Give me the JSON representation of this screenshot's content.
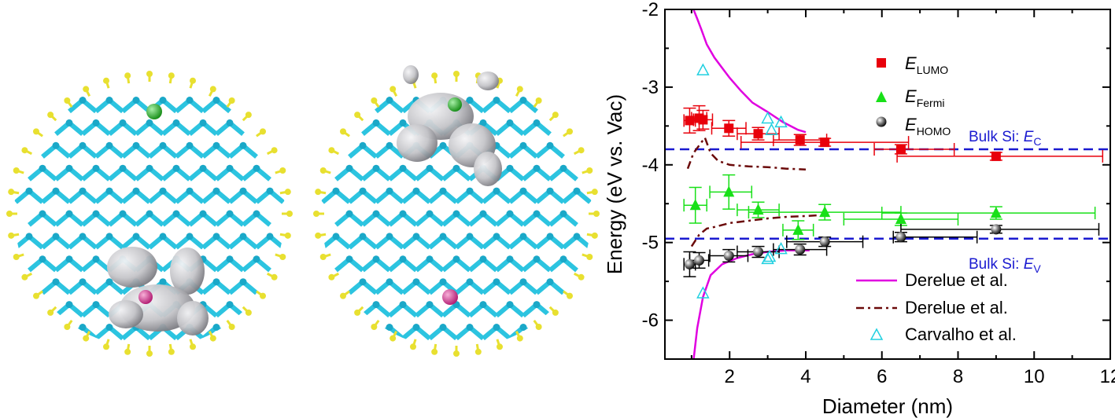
{
  "chart_data": {
    "type": "scatter",
    "xlabel": "Diameter (nm)",
    "ylabel": "Energy (eV vs. Vac)",
    "xlim": [
      0.3,
      12
    ],
    "ylim": [
      -6.5,
      -2
    ],
    "xticks": [
      2,
      4,
      6,
      8,
      10,
      12
    ],
    "yticks": [
      -2,
      -3,
      -4,
      -5,
      -6
    ],
    "xtick_labels": [
      "2",
      "4",
      "6",
      "8",
      "10",
      "12"
    ],
    "ytick_labels": [
      "-2",
      "-3",
      "-4",
      "-5",
      "-6"
    ],
    "grid": false,
    "legend_position": "top-right",
    "colors": {
      "lumo": "#e8000b",
      "fermi": "#18e018",
      "homo": "#000000",
      "derelue_solid": "#e000e0",
      "derelue_dash": "#6b0a0a",
      "carvalho": "#20d0e0",
      "bulk": "#1a1ad0"
    },
    "series": [
      {
        "name": "E",
        "sub": "LUMO",
        "marker": "square",
        "points": [
          {
            "x": 0.95,
            "y": -3.43,
            "xerr": [
              0.15,
              0.15
            ],
            "yerr": 0.16
          },
          {
            "x": 1.2,
            "y": -3.4,
            "xerr": [
              0.2,
              0.2
            ],
            "yerr": 0.16
          },
          {
            "x": 1.3,
            "y": -3.42,
            "xerr": [
              0.25,
              0.25
            ],
            "yerr": 0.12
          },
          {
            "x": 1.98,
            "y": -3.53,
            "xerr": [
              0.45,
              0.45
            ],
            "yerr": 0.1
          },
          {
            "x": 2.75,
            "y": -3.6,
            "xerr": [
              0.55,
              0.55
            ],
            "yerr": 0.08
          },
          {
            "x": 3.85,
            "y": -3.68,
            "xerr": [
              0.7,
              0.7
            ],
            "yerr": 0.07
          },
          {
            "x": 4.5,
            "y": -3.71,
            "xerr": [
              2.2,
              2.2
            ],
            "yerr": 0.05
          },
          {
            "x": 6.5,
            "y": -3.8,
            "xerr": [
              0.7,
              1.4
            ],
            "yerr": 0.06
          },
          {
            "x": 9.0,
            "y": -3.89,
            "xerr": [
              2.6,
              2.8
            ],
            "yerr": 0.05
          }
        ]
      },
      {
        "name": "E",
        "sub": "Fermi",
        "marker": "triangle",
        "points": [
          {
            "x": 1.1,
            "y": -4.52,
            "xerr": [
              0.3,
              0.3
            ],
            "yerr": 0.23
          },
          {
            "x": 1.98,
            "y": -4.35,
            "xerr": [
              0.5,
              0.6
            ],
            "yerr": 0.22
          },
          {
            "x": 2.75,
            "y": -4.58,
            "xerr": [
              0.55,
              0.55
            ],
            "yerr": 0.1
          },
          {
            "x": 3.8,
            "y": -4.84,
            "xerr": [
              0.4,
              0.4
            ],
            "yerr": 0.12
          },
          {
            "x": 4.5,
            "y": -4.61,
            "xerr": [
              2.0,
              2.0
            ],
            "yerr": 0.1
          },
          {
            "x": 6.5,
            "y": -4.7,
            "xerr": [
              1.5,
              1.5
            ],
            "yerr": 0.08
          },
          {
            "x": 9.0,
            "y": -4.62,
            "xerr": [
              3.0,
              2.6
            ],
            "yerr": 0.08
          }
        ]
      },
      {
        "name": "E",
        "sub": "HOMO",
        "marker": "sphere",
        "points": [
          {
            "x": 0.95,
            "y": -5.28,
            "xerr": [
              0.15,
              0.15
            ],
            "yerr": 0.16
          },
          {
            "x": 1.2,
            "y": -5.23,
            "xerr": [
              0.25,
              0.25
            ],
            "yerr": 0.1
          },
          {
            "x": 1.98,
            "y": -5.17,
            "xerr": [
              0.5,
              0.5
            ],
            "yerr": 0.08
          },
          {
            "x": 2.75,
            "y": -5.12,
            "xerr": [
              0.55,
              0.55
            ],
            "yerr": 0.07
          },
          {
            "x": 3.85,
            "y": -5.09,
            "xerr": [
              0.7,
              0.7
            ],
            "yerr": 0.07
          },
          {
            "x": 4.5,
            "y": -4.99,
            "xerr": [
              1.0,
              1.0
            ],
            "yerr": 0.06
          },
          {
            "x": 6.5,
            "y": -4.93,
            "xerr": [
              0.2,
              2.0
            ],
            "yerr": 0.06
          },
          {
            "x": 9.0,
            "y": -4.83,
            "xerr": [
              2.5,
              2.7
            ],
            "yerr": 0.05
          }
        ]
      }
    ],
    "derelue_solid_upper": [
      [
        1.05,
        -2.0
      ],
      [
        1.15,
        -2.12
      ],
      [
        1.25,
        -2.25
      ],
      [
        1.4,
        -2.45
      ],
      [
        1.6,
        -2.62
      ],
      [
        1.8,
        -2.75
      ],
      [
        2.0,
        -2.88
      ],
      [
        2.3,
        -3.05
      ],
      [
        2.6,
        -3.2
      ],
      [
        3.0,
        -3.32
      ],
      [
        3.4,
        -3.45
      ],
      [
        3.8,
        -3.55
      ],
      [
        4.0,
        -3.58
      ]
    ],
    "derelue_solid_lower": [
      [
        1.05,
        -6.52
      ],
      [
        1.15,
        -6.1
      ],
      [
        1.3,
        -5.7
      ],
      [
        1.5,
        -5.42
      ],
      [
        1.8,
        -5.28
      ],
      [
        2.2,
        -5.2
      ],
      [
        2.6,
        -5.15
      ],
      [
        3.0,
        -5.12
      ],
      [
        3.5,
        -5.1
      ],
      [
        3.9,
        -5.1
      ],
      [
        4.1,
        -5.1
      ]
    ],
    "derelue_dashdot_upper": [
      [
        0.9,
        -4.05
      ],
      [
        1.05,
        -3.85
      ],
      [
        1.2,
        -3.75
      ],
      [
        1.35,
        -3.65
      ],
      [
        1.5,
        -3.85
      ],
      [
        1.7,
        -3.95
      ],
      [
        2.0,
        -4.0
      ],
      [
        2.5,
        -4.02
      ],
      [
        3.0,
        -4.03
      ],
      [
        3.5,
        -4.05
      ],
      [
        4.0,
        -4.06
      ]
    ],
    "derelue_dashdot_lower": [
      [
        1.0,
        -5.05
      ],
      [
        1.2,
        -4.9
      ],
      [
        1.4,
        -4.82
      ],
      [
        1.6,
        -4.8
      ],
      [
        2.0,
        -4.75
      ],
      [
        2.5,
        -4.72
      ],
      [
        3.0,
        -4.69
      ],
      [
        3.5,
        -4.67
      ],
      [
        4.0,
        -4.66
      ],
      [
        4.3,
        -4.65
      ]
    ],
    "carvalho": [
      [
        1.3,
        -2.78
      ],
      [
        3.0,
        -3.4
      ],
      [
        3.35,
        -3.45
      ],
      [
        3.1,
        -3.55
      ],
      [
        1.3,
        -5.65
      ],
      [
        3.05,
        -5.18
      ],
      [
        3.35,
        -5.08
      ],
      [
        3.0,
        -5.21
      ]
    ],
    "bulk_lines": [
      {
        "y": -3.8,
        "label": "Bulk Si: ",
        "italic": "E",
        "sub": "C"
      },
      {
        "y": -4.95,
        "label": "Bulk Si: ",
        "italic": "E",
        "sub": "V"
      }
    ],
    "legend": {
      "lumo_label": "E",
      "lumo_sub": "LUMO",
      "fermi_label": "E",
      "fermi_sub": "Fermi",
      "homo_label": "E",
      "homo_sub": "HOMO",
      "solid_label": "Derelue et al.",
      "dash_label": "Derelue et al.",
      "carvalho_label": "Carvalho et al."
    }
  },
  "structures": {
    "lattice_color": "#2cc4e0",
    "h_color": "#e8e030",
    "dopant_n_color": "#2ec02e",
    "dopant_p_color": "#e040a0",
    "orbital_color": "#c8c8cc"
  }
}
